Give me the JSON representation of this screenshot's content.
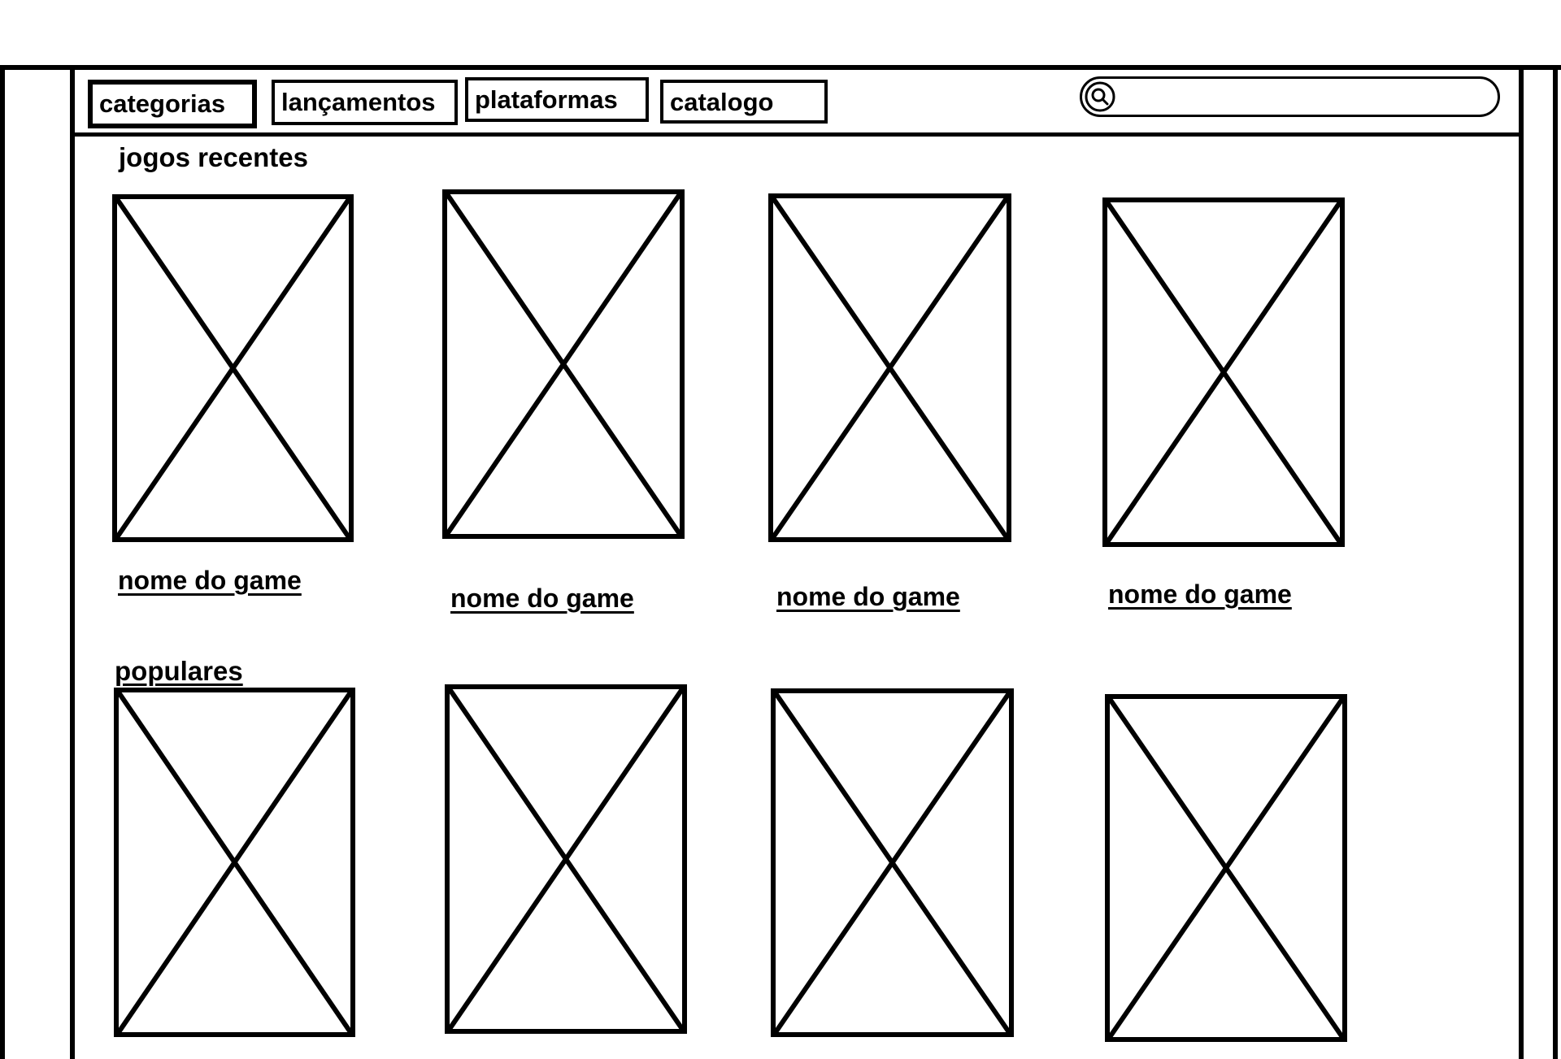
{
  "nav": {
    "items": [
      {
        "label": "categorias"
      },
      {
        "label": "lançamentos"
      },
      {
        "label": "plataformas"
      },
      {
        "label": "catalogo"
      }
    ]
  },
  "search": {
    "placeholder": "",
    "icon": "search-icon"
  },
  "sections": [
    {
      "title": "jogos recentes",
      "games": [
        {
          "name": "nome do game",
          "image": "image-placeholder"
        },
        {
          "name": "nome do game",
          "image": "image-placeholder"
        },
        {
          "name": "nome do game",
          "image": "image-placeholder"
        },
        {
          "name": "nome do game",
          "image": "image-placeholder"
        }
      ]
    },
    {
      "title": "populares",
      "games": [
        {
          "image": "image-placeholder"
        },
        {
          "image": "image-placeholder"
        },
        {
          "image": "image-placeholder"
        },
        {
          "image": "image-placeholder"
        }
      ]
    }
  ],
  "colors": {
    "ink": "#000000",
    "paper": "#ffffff"
  }
}
